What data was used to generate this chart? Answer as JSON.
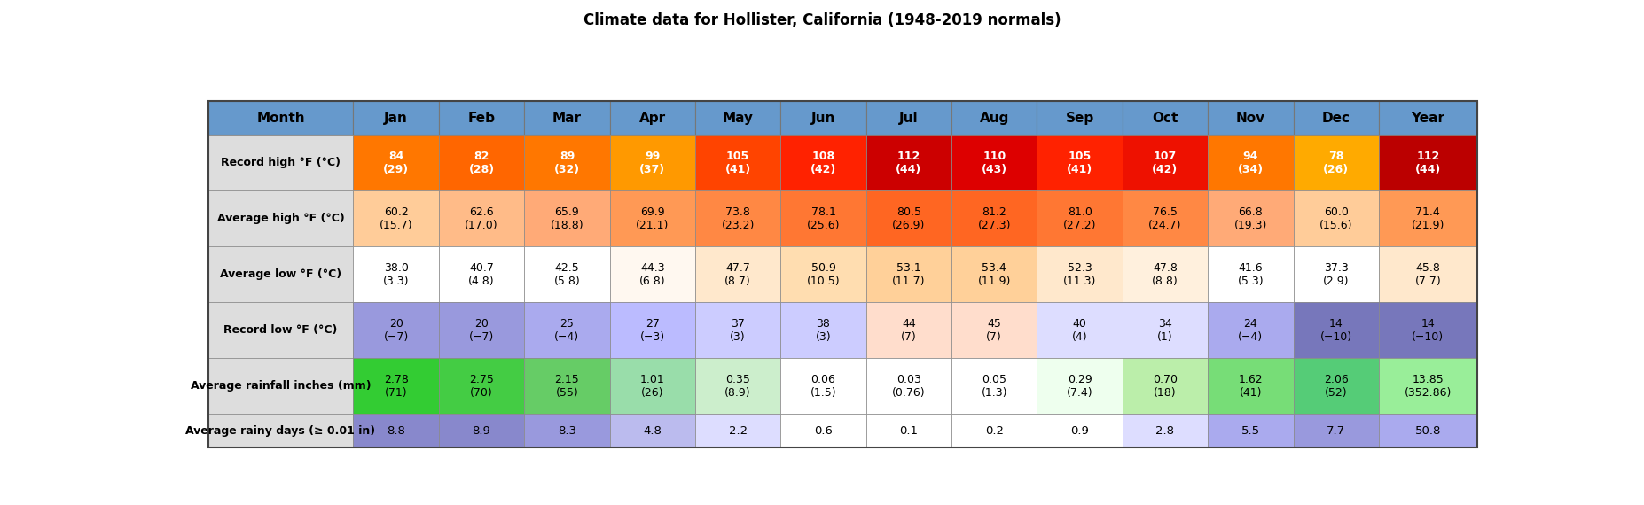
{
  "title": "Climate data for Hollister, California (1948-2019 normals)",
  "columns": [
    "Month",
    "Jan",
    "Feb",
    "Mar",
    "Apr",
    "May",
    "Jun",
    "Jul",
    "Aug",
    "Sep",
    "Oct",
    "Nov",
    "Dec",
    "Year"
  ],
  "rows": [
    {
      "label": "Record high °F (°C)",
      "values": [
        "84\n(29)",
        "82\n(28)",
        "89\n(32)",
        "99\n(37)",
        "105\n(41)",
        "108\n(42)",
        "112\n(44)",
        "110\n(43)",
        "105\n(41)",
        "107\n(42)",
        "94\n(34)",
        "78\n(26)",
        "112\n(44)"
      ],
      "colors": [
        "#FF7700",
        "#FF6600",
        "#FF7700",
        "#FF9900",
        "#FF4400",
        "#FF2200",
        "#CC0000",
        "#DD0000",
        "#FF2200",
        "#EE1100",
        "#FF7700",
        "#FFAA00",
        "#BB0000"
      ],
      "text_colors": [
        "#FFFFFF",
        "#FFFFFF",
        "#FFFFFF",
        "#FFFFFF",
        "#FFFFFF",
        "#FFFFFF",
        "#FFFFFF",
        "#FFFFFF",
        "#FFFFFF",
        "#FFFFFF",
        "#FFFFFF",
        "#FFFFFF",
        "#FFFFFF"
      ],
      "bold": true
    },
    {
      "label": "Average high °F (°C)",
      "values": [
        "60.2\n(15.7)",
        "62.6\n(17.0)",
        "65.9\n(18.8)",
        "69.9\n(21.1)",
        "73.8\n(23.2)",
        "78.1\n(25.6)",
        "80.5\n(26.9)",
        "81.2\n(27.3)",
        "81.0\n(27.2)",
        "76.5\n(24.7)",
        "66.8\n(19.3)",
        "60.0\n(15.6)",
        "71.4\n(21.9)"
      ],
      "colors": [
        "#FFCC99",
        "#FFBB88",
        "#FFAA77",
        "#FF9955",
        "#FF8844",
        "#FF7733",
        "#FF6622",
        "#FF6622",
        "#FF7733",
        "#FF8844",
        "#FFAA77",
        "#FFCC99",
        "#FF9955"
      ],
      "text_colors": [
        "#000000",
        "#000000",
        "#000000",
        "#000000",
        "#000000",
        "#000000",
        "#000000",
        "#000000",
        "#000000",
        "#000000",
        "#000000",
        "#000000",
        "#000000"
      ],
      "bold": false
    },
    {
      "label": "Average low °F (°C)",
      "values": [
        "38.0\n(3.3)",
        "40.7\n(4.8)",
        "42.5\n(5.8)",
        "44.3\n(6.8)",
        "47.7\n(8.7)",
        "50.9\n(10.5)",
        "53.1\n(11.7)",
        "53.4\n(11.9)",
        "52.3\n(11.3)",
        "47.8\n(8.8)",
        "41.6\n(5.3)",
        "37.3\n(2.9)",
        "45.8\n(7.7)"
      ],
      "colors": [
        "#FFFFFF",
        "#FFFFFF",
        "#FFFFFF",
        "#FFF8F0",
        "#FFE8CC",
        "#FFDDB0",
        "#FFD099",
        "#FFD099",
        "#FFE8CC",
        "#FFF0DD",
        "#FFFFFF",
        "#FFFFFF",
        "#FFE8CC"
      ],
      "text_colors": [
        "#000000",
        "#000000",
        "#000000",
        "#000000",
        "#000000",
        "#000000",
        "#000000",
        "#000000",
        "#000000",
        "#000000",
        "#000000",
        "#000000",
        "#000000"
      ],
      "bold": false
    },
    {
      "label": "Record low °F (°C)",
      "values": [
        "20\n(−7)",
        "20\n(−7)",
        "25\n(−4)",
        "27\n(−3)",
        "37\n(3)",
        "38\n(3)",
        "44\n(7)",
        "45\n(7)",
        "40\n(4)",
        "34\n(1)",
        "24\n(−4)",
        "14\n(−10)",
        "14\n(−10)"
      ],
      "colors": [
        "#9999DD",
        "#9999DD",
        "#AAAAEE",
        "#BBBBFF",
        "#CCCCFF",
        "#CCCCFF",
        "#FFDDCC",
        "#FFDDCC",
        "#DDDDFF",
        "#DDDDFF",
        "#AAAAEE",
        "#7777BB",
        "#7777BB"
      ],
      "text_colors": [
        "#000000",
        "#000000",
        "#000000",
        "#000000",
        "#000000",
        "#000000",
        "#000000",
        "#000000",
        "#000000",
        "#000000",
        "#000000",
        "#000000",
        "#000000"
      ],
      "bold": false
    },
    {
      "label": "Average rainfall inches (mm)",
      "values": [
        "2.78\n(71)",
        "2.75\n(70)",
        "2.15\n(55)",
        "1.01\n(26)",
        "0.35\n(8.9)",
        "0.06\n(1.5)",
        "0.03\n(0.76)",
        "0.05\n(1.3)",
        "0.29\n(7.4)",
        "0.70\n(18)",
        "1.62\n(41)",
        "2.06\n(52)",
        "13.85\n(352.86)"
      ],
      "colors": [
        "#33CC33",
        "#44CC44",
        "#66CC66",
        "#99DDAA",
        "#CCEECC",
        "#FFFFFF",
        "#FFFFFF",
        "#FFFFFF",
        "#EEFFEE",
        "#BBEEAA",
        "#77DD77",
        "#55CC77",
        "#99EE99"
      ],
      "text_colors": [
        "#000000",
        "#000000",
        "#000000",
        "#000000",
        "#000000",
        "#000000",
        "#000000",
        "#000000",
        "#000000",
        "#000000",
        "#000000",
        "#000000",
        "#000000"
      ],
      "bold": false
    },
    {
      "label": "Average rainy days (≥ 0.01 in)",
      "values": [
        "8.8",
        "8.9",
        "8.3",
        "4.8",
        "2.2",
        "0.6",
        "0.1",
        "0.2",
        "0.9",
        "2.8",
        "5.5",
        "7.7",
        "50.8"
      ],
      "colors": [
        "#8888CC",
        "#8888CC",
        "#9999DD",
        "#BBBBEE",
        "#DDDDFF",
        "#FFFFFF",
        "#FFFFFF",
        "#FFFFFF",
        "#FFFFFF",
        "#DDDDFF",
        "#AAAAEE",
        "#9999DD",
        "#AAAAEE"
      ],
      "text_colors": [
        "#000000",
        "#000000",
        "#000000",
        "#000000",
        "#000000",
        "#000000",
        "#000000",
        "#000000",
        "#000000",
        "#000000",
        "#000000",
        "#000000",
        "#000000"
      ],
      "bold": false
    }
  ],
  "header_bg": "#6699CC",
  "header_text": "#000000",
  "label_bg": "#DDDDDD",
  "label_text": "#000000",
  "title_fontsize": 12,
  "header_fontsize": 11,
  "cell_fontsize": 9,
  "label_fontsize": 9
}
